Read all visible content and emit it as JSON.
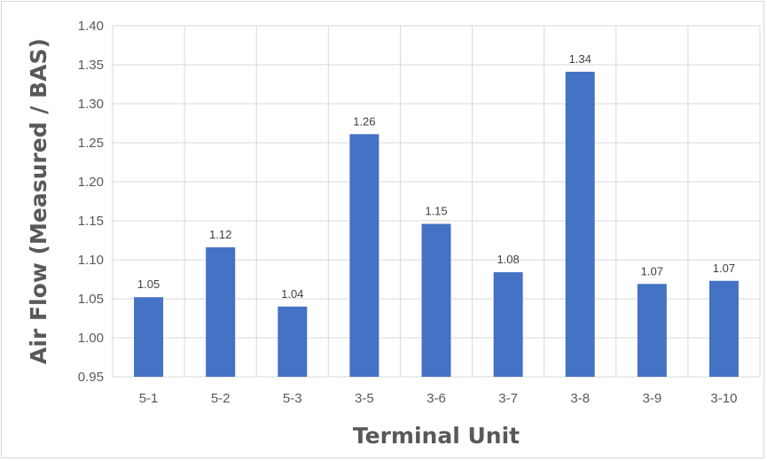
{
  "chart_data": {
    "type": "bar",
    "title": "",
    "xlabel": "Terminal Unit",
    "ylabel": "Air Flow (Measured / BAS)",
    "categories": [
      "5-1",
      "5-2",
      "5-3",
      "3-5",
      "3-6",
      "3-7",
      "3-8",
      "3-9",
      "3-10"
    ],
    "values": [
      1.052,
      1.116,
      1.04,
      1.261,
      1.146,
      1.084,
      1.341,
      1.069,
      1.073
    ],
    "data_labels": [
      "1.05",
      "1.12",
      "1.04",
      "1.26",
      "1.15",
      "1.08",
      "1.34",
      "1.07",
      "1.07"
    ],
    "ylim": [
      0.95,
      1.4
    ],
    "yticks": [
      "0.95",
      "1.00",
      "1.05",
      "1.10",
      "1.15",
      "1.20",
      "1.25",
      "1.30",
      "1.35",
      "1.40"
    ],
    "ytick_values": [
      0.95,
      1.0,
      1.05,
      1.1,
      1.15,
      1.2,
      1.25,
      1.3,
      1.35,
      1.4
    ],
    "grid": "both",
    "legend": "none",
    "bar_color": "#4472c4",
    "grid_color": "#d9d9d9",
    "text_color": "#595959"
  }
}
